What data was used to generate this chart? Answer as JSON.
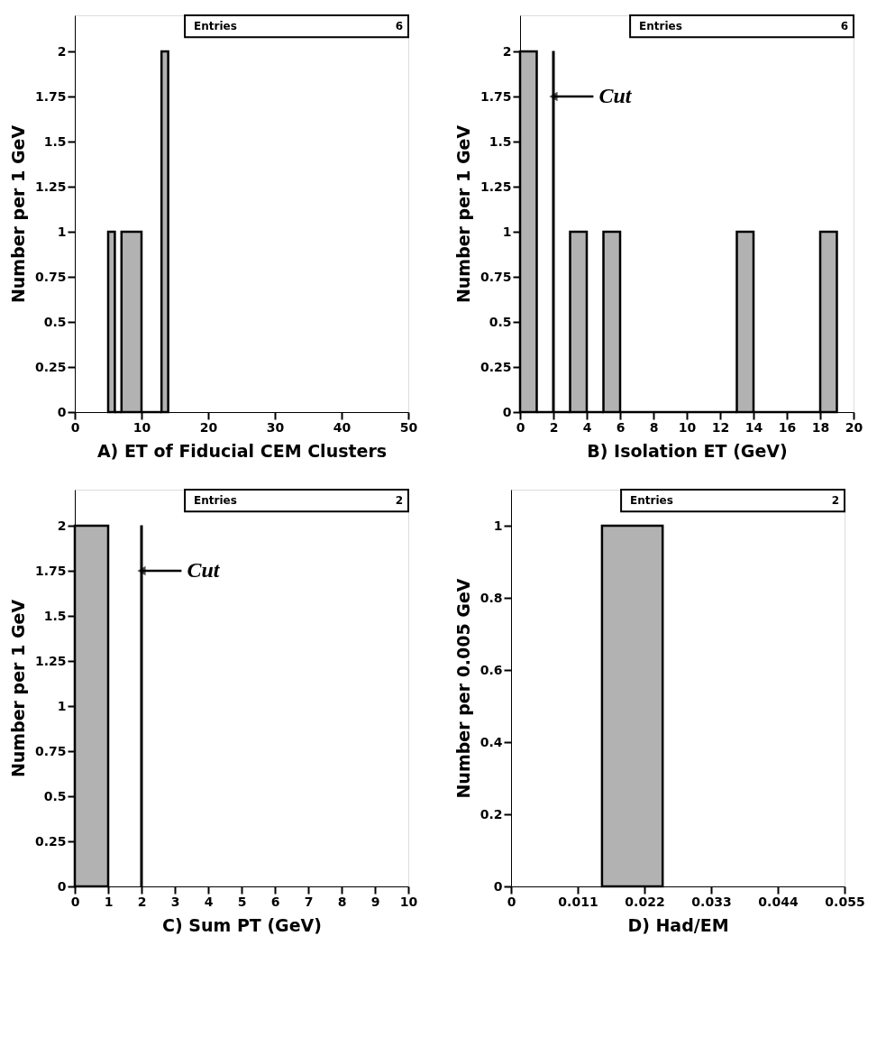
{
  "chart_data": [
    {
      "type": "histogram",
      "xlabel": "A)  ET of Fiducial CEM Clusters",
      "ylabel": "Number per 1 GeV",
      "bins": [
        5,
        6,
        7,
        10,
        13,
        14
      ],
      "values": [
        1,
        0,
        1,
        0,
        2
      ],
      "color": "#000000",
      "xlim": [
        0,
        50
      ],
      "xticks": [
        0,
        10,
        20,
        30,
        40,
        50
      ],
      "ylim": [
        0,
        2.2
      ],
      "yticks": [
        0,
        0.25,
        0.5,
        0.75,
        1,
        1.25,
        1.5,
        1.75,
        2
      ],
      "grid": false,
      "annotations": [
        "Entries",
        "6"
      ]
    },
    {
      "type": "histogram",
      "xlabel": "B)  Isolation ET    (GeV)",
      "ylabel": "Number per 1 GeV",
      "bins": [
        0,
        1,
        3,
        4,
        5,
        6,
        13,
        14,
        18,
        19
      ],
      "values": [
        2,
        0,
        1,
        0,
        1,
        0,
        1,
        0,
        1
      ],
      "color": "#000000",
      "xlim": [
        0,
        20
      ],
      "xticks": [
        0,
        2,
        4,
        6,
        8,
        10,
        12,
        14,
        16,
        18,
        20
      ],
      "ylim": [
        0,
        2.2
      ],
      "yticks": [
        0,
        0.25,
        0.5,
        0.75,
        1,
        1.25,
        1.5,
        1.75,
        2
      ],
      "grid": false,
      "ref_lines": [
        {
          "axis": "x",
          "value": 2
        }
      ],
      "annotations": [
        "Entries",
        "6",
        {
          "text": "Cut",
          "x": 2,
          "y": 1.75
        }
      ]
    },
    {
      "type": "histogram",
      "xlabel": "C)  Sum PT    (GeV)",
      "ylabel": "Number per 1 GeV",
      "bins": [
        0,
        1
      ],
      "values": [
        2
      ],
      "color": "#000000",
      "xlim": [
        0,
        10
      ],
      "xticks": [
        0,
        1,
        2,
        3,
        4,
        5,
        6,
        7,
        8,
        9,
        10
      ],
      "ylim": [
        0,
        2.2
      ],
      "yticks": [
        0,
        0.25,
        0.5,
        0.75,
        1,
        1.25,
        1.5,
        1.75,
        2
      ],
      "grid": false,
      "ref_lines": [
        {
          "axis": "x",
          "value": 2
        }
      ],
      "annotations": [
        "Entries",
        "2",
        {
          "text": "Cut",
          "x": 2,
          "y": 1.75
        }
      ]
    },
    {
      "type": "histogram",
      "xlabel": "D)  Had/EM",
      "ylabel": "Number per 0.005 GeV",
      "bins": [
        0.015,
        0.025
      ],
      "values": [
        1
      ],
      "color": "#000000",
      "xlim": [
        0,
        0.055
      ],
      "xticks": [
        0,
        0.011,
        0.022,
        0.033,
        0.044,
        0.055
      ],
      "ylim": [
        0,
        1.1
      ],
      "yticks": [
        0,
        0.2,
        0.4,
        0.6,
        0.8,
        1
      ],
      "grid": false,
      "annotations": [
        "Entries",
        "2"
      ]
    }
  ]
}
